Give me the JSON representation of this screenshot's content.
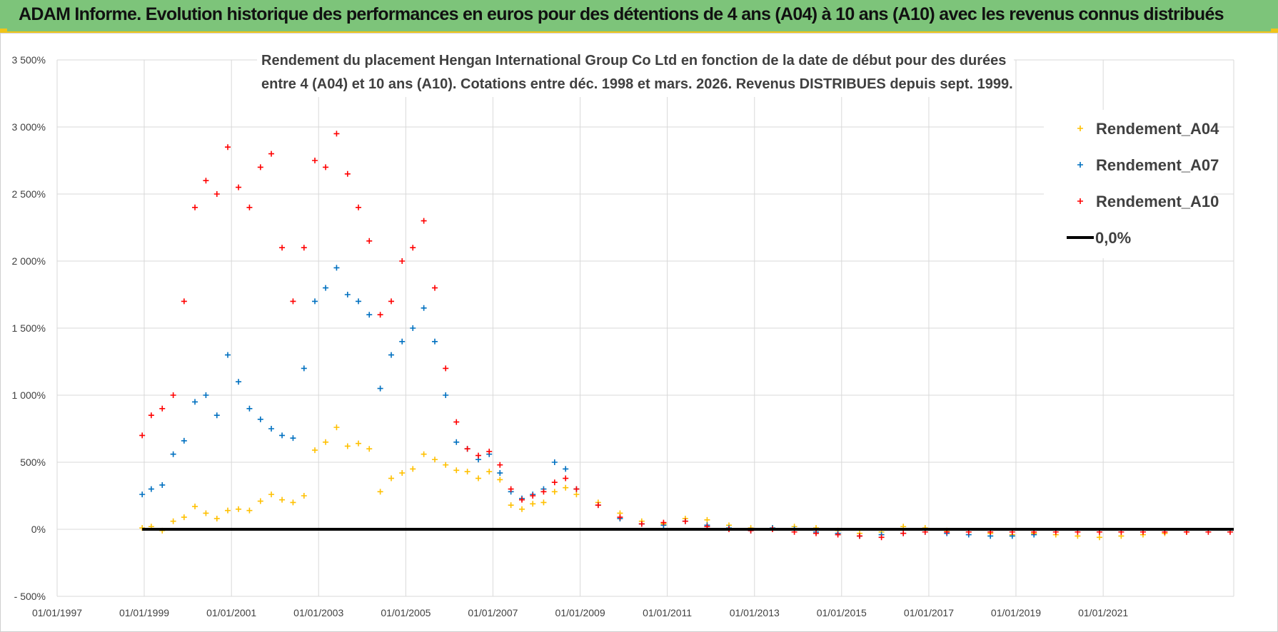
{
  "header": {
    "title": "ADAM Informe. Evolution historique des performances en euros pour des détentions de 4 ans (A04) à 10 ans (A10) avec les revenus connus distribués"
  },
  "colors": {
    "header_bg": "#7dc47a",
    "accent": "#f0c419",
    "A04": "#ffc000",
    "A07": "#0070c0",
    "A10": "#ff0000",
    "zero": "#000000"
  },
  "chart_data": {
    "type": "scatter",
    "title": "Rendement du placement Hengan International Group Co Ltd en fonction de la date de début pour des durées",
    "subtitle": "entre 4 (A04) et 10 ans (A10).  Cotations entre déc. 1998 et mars. 2026. Revenus DISTRIBUES depuis sept. 1999.",
    "xlabel": "",
    "ylabel": "",
    "x_range": [
      "1997-01-01",
      "2023-12-31"
    ],
    "ylim": [
      -500,
      3500
    ],
    "y_unit": "%",
    "grid": true,
    "legend_position": "top-right",
    "y_ticks": [
      {
        "value": 3500,
        "label": "3 500%"
      },
      {
        "value": 3000,
        "label": "3 000%"
      },
      {
        "value": 2500,
        "label": "2 500%"
      },
      {
        "value": 2000,
        "label": "2 000%"
      },
      {
        "value": 1500,
        "label": "1 500%"
      },
      {
        "value": 1000,
        "label": "1 000%"
      },
      {
        "value": 500,
        "label": "500%"
      },
      {
        "value": 0,
        "label": "0%"
      },
      {
        "value": -500,
        "label": "- 500%"
      }
    ],
    "x_ticks": [
      {
        "date": "1997-01-01",
        "label": "01/01/1997"
      },
      {
        "date": "1999-01-01",
        "label": "01/01/1999"
      },
      {
        "date": "2001-01-01",
        "label": "01/01/2001"
      },
      {
        "date": "2003-01-01",
        "label": "01/01/2003"
      },
      {
        "date": "2005-01-01",
        "label": "01/01/2005"
      },
      {
        "date": "2007-01-01",
        "label": "01/01/2007"
      },
      {
        "date": "2009-01-01",
        "label": "01/01/2009"
      },
      {
        "date": "2011-01-01",
        "label": "01/01/2011"
      },
      {
        "date": "2013-01-01",
        "label": "01/01/2013"
      },
      {
        "date": "2015-01-01",
        "label": "01/01/2015"
      },
      {
        "date": "2017-01-01",
        "label": "01/01/2017"
      },
      {
        "date": "2019-01-01",
        "label": "01/01/2019"
      },
      {
        "date": "2021-01-01",
        "label": "01/01/2021"
      }
    ],
    "series": [
      {
        "name": "Rendement_A04",
        "marker": "plus",
        "x": [
          "1998-12-15",
          "1999-03-01",
          "1999-06-01",
          "1999-09-01",
          "1999-12-01",
          "2000-03-01",
          "2000-06-01",
          "2000-09-01",
          "2000-12-01",
          "2001-03-01",
          "2001-06-01",
          "2001-09-01",
          "2001-12-01",
          "2002-03-01",
          "2002-06-01",
          "2002-09-01",
          "2002-12-01",
          "2003-03-01",
          "2003-06-01",
          "2003-09-01",
          "2003-12-01",
          "2004-03-01",
          "2004-06-01",
          "2004-09-01",
          "2004-12-01",
          "2005-03-01",
          "2005-06-01",
          "2005-09-01",
          "2005-12-01",
          "2006-03-01",
          "2006-06-01",
          "2006-09-01",
          "2006-12-01",
          "2007-03-01",
          "2007-06-01",
          "2007-09-01",
          "2007-12-01",
          "2008-03-01",
          "2008-06-01",
          "2008-09-01",
          "2008-12-01",
          "2009-06-01",
          "2009-12-01",
          "2010-06-01",
          "2010-12-01",
          "2011-06-01",
          "2011-12-01",
          "2012-06-01",
          "2012-12-01",
          "2013-06-01",
          "2013-12-01",
          "2014-06-01",
          "2014-12-01",
          "2015-06-01",
          "2015-12-01",
          "2016-06-01",
          "2016-12-01",
          "2017-06-01",
          "2017-12-01",
          "2018-06-01",
          "2018-12-01",
          "2019-06-01",
          "2019-12-01",
          "2020-06-01",
          "2020-12-01",
          "2021-06-01",
          "2021-12-01",
          "2022-06-01",
          "2022-12-01"
        ],
        "y": [
          10,
          20,
          -10,
          60,
          90,
          170,
          120,
          80,
          140,
          150,
          140,
          210,
          260,
          220,
          200,
          250,
          590,
          650,
          760,
          620,
          640,
          600,
          280,
          380,
          420,
          450,
          560,
          520,
          480,
          440,
          430,
          380,
          430,
          370,
          180,
          150,
          190,
          200,
          280,
          310,
          260,
          200,
          120,
          60,
          40,
          80,
          70,
          30,
          10,
          10,
          20,
          10,
          -10,
          -30,
          -20,
          20,
          10,
          -10,
          -20,
          -30,
          -40,
          -30,
          -40,
          -50,
          -60,
          -50,
          -40,
          -30,
          -20
        ]
      },
      {
        "name": "Rendement_A07",
        "marker": "plus",
        "x": [
          "1998-12-15",
          "1999-03-01",
          "1999-06-01",
          "1999-09-01",
          "1999-12-01",
          "2000-03-01",
          "2000-06-01",
          "2000-09-01",
          "2000-12-01",
          "2001-03-01",
          "2001-06-01",
          "2001-09-01",
          "2001-12-01",
          "2002-03-01",
          "2002-06-01",
          "2002-09-01",
          "2002-12-01",
          "2003-03-01",
          "2003-06-01",
          "2003-09-01",
          "2003-12-01",
          "2004-03-01",
          "2004-06-01",
          "2004-09-01",
          "2004-12-01",
          "2005-03-01",
          "2005-06-01",
          "2005-09-01",
          "2005-12-01",
          "2006-03-01",
          "2006-06-01",
          "2006-09-01",
          "2006-12-01",
          "2007-03-01",
          "2007-06-01",
          "2007-09-01",
          "2007-12-01",
          "2008-03-01",
          "2008-06-01",
          "2008-09-01",
          "2008-12-01",
          "2009-06-01",
          "2009-12-01",
          "2010-06-01",
          "2010-12-01",
          "2011-06-01",
          "2011-12-01",
          "2012-06-01",
          "2012-12-01",
          "2013-06-01",
          "2013-12-01",
          "2014-06-01",
          "2014-12-01",
          "2015-06-01",
          "2015-12-01",
          "2016-06-01",
          "2016-12-01",
          "2017-06-01",
          "2017-12-01",
          "2018-06-01",
          "2018-12-01",
          "2019-06-01"
        ],
        "y": [
          260,
          300,
          330,
          560,
          660,
          950,
          1000,
          850,
          1300,
          1100,
          900,
          820,
          750,
          700,
          680,
          1200,
          1700,
          1800,
          1950,
          1750,
          1700,
          1600,
          1050,
          1300,
          1400,
          1500,
          1650,
          1400,
          1000,
          650,
          600,
          520,
          560,
          420,
          280,
          230,
          260,
          300,
          500,
          450,
          300,
          180,
          80,
          40,
          30,
          60,
          30,
          10,
          -10,
          10,
          0,
          -20,
          -30,
          -50,
          -40,
          -30,
          -20,
          -30,
          -40,
          -50,
          -50,
          -40
        ]
      },
      {
        "name": "Rendement_A10",
        "marker": "plus",
        "x": [
          "1998-12-15",
          "1999-03-01",
          "1999-06-01",
          "1999-09-01",
          "1999-12-01",
          "2000-03-01",
          "2000-06-01",
          "2000-09-01",
          "2000-12-01",
          "2001-03-01",
          "2001-06-01",
          "2001-09-01",
          "2001-12-01",
          "2002-03-01",
          "2002-06-01",
          "2002-09-01",
          "2002-12-01",
          "2003-03-01",
          "2003-06-01",
          "2003-09-01",
          "2003-12-01",
          "2004-03-01",
          "2004-06-01",
          "2004-09-01",
          "2004-12-01",
          "2005-03-01",
          "2005-06-01",
          "2005-09-01",
          "2005-12-01",
          "2006-03-01",
          "2006-06-01",
          "2006-09-01",
          "2006-12-01",
          "2007-03-01",
          "2007-06-01",
          "2007-09-01",
          "2007-12-01",
          "2008-03-01",
          "2008-06-01",
          "2008-09-01",
          "2008-12-01",
          "2009-06-01",
          "2009-12-01",
          "2010-06-01",
          "2010-12-01",
          "2011-06-01",
          "2011-12-01",
          "2012-06-01",
          "2012-12-01",
          "2013-06-01",
          "2013-12-01",
          "2014-06-01",
          "2014-12-01",
          "2015-06-01",
          "2015-12-01",
          "2016-06-01",
          "2016-12-01",
          "2017-06-01",
          "2017-12-01",
          "2018-06-01",
          "2018-12-01",
          "2019-06-01",
          "2019-12-01",
          "2020-06-01",
          "2020-12-01",
          "2021-06-01",
          "2021-12-01",
          "2022-06-01",
          "2022-12-01",
          "2023-06-01",
          "2023-12-01"
        ],
        "y": [
          700,
          850,
          900,
          1000,
          1700,
          2400,
          2600,
          2500,
          2850,
          2550,
          2400,
          2700,
          2800,
          2100,
          1700,
          2100,
          2750,
          2700,
          2950,
          2650,
          2400,
          2150,
          1600,
          1700,
          2000,
          2100,
          2300,
          1800,
          1200,
          800,
          600,
          550,
          580,
          480,
          300,
          220,
          250,
          280,
          350,
          380,
          300,
          180,
          90,
          40,
          50,
          60,
          20,
          0,
          -10,
          0,
          -20,
          -30,
          -40,
          -50,
          -60,
          -30,
          -20,
          -20,
          -20,
          -20,
          -20,
          -20,
          -20,
          -20,
          -20,
          -20,
          -20,
          -20,
          -20,
          -20,
          -20
        ]
      },
      {
        "name": "0,0%",
        "marker": "line",
        "x": [
          "1998-12-15",
          "2023-12-31"
        ],
        "y": [
          0,
          0
        ]
      }
    ]
  }
}
